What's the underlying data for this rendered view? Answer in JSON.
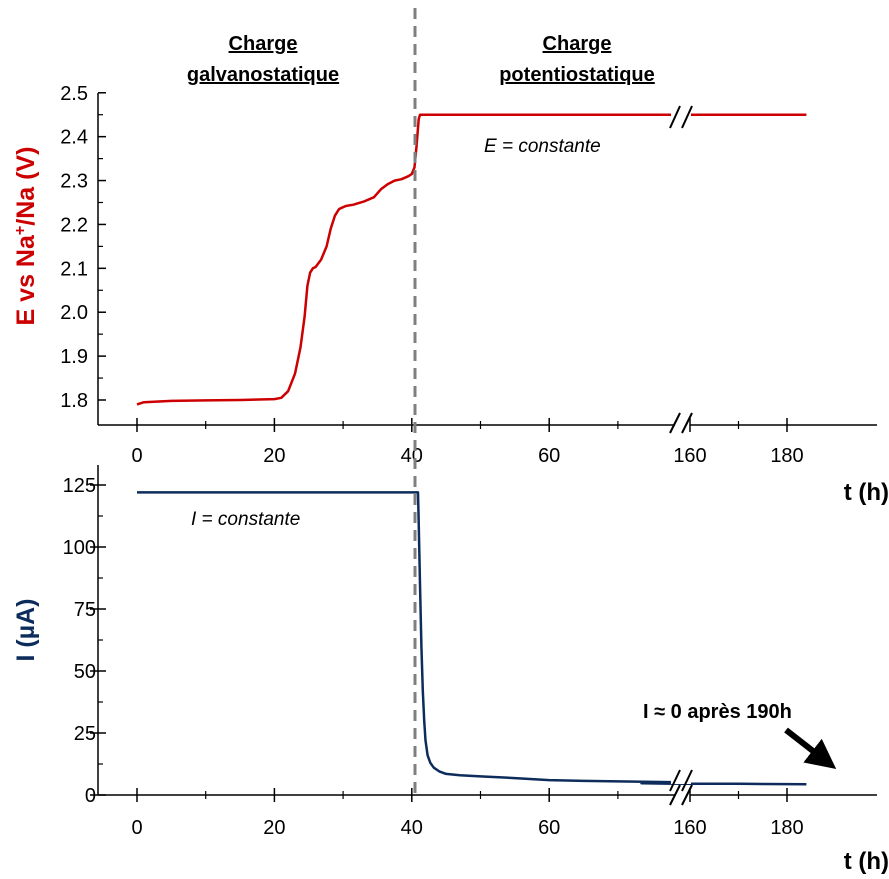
{
  "colors": {
    "potential": "#cc0000",
    "current": "#0d2c5c",
    "divider": "#7f7f7f",
    "axis": "#000000"
  },
  "chart_data": [
    {
      "type": "line",
      "id": "potential",
      "phase_labels": [
        {
          "line1": "Charge",
          "line2": "galvanostatique"
        },
        {
          "line1": "Charge",
          "line2": "potentiostatique"
        }
      ],
      "ylabel": "E vs Na⁺/Na (V)",
      "ylabel_parts": {
        "a": "E vs Na",
        "sup": "+",
        "b": "/Na (V)"
      },
      "xlabel": "t (h)",
      "annotation": "E = constante",
      "ylim": [
        1.77,
        2.5
      ],
      "y_ticks": [
        "1.8",
        "1.9",
        "2.0",
        "2.1",
        "2.2",
        "2.3",
        "2.4",
        "2.5"
      ],
      "x_ticks": [
        "0",
        "20",
        "40",
        "60",
        "160",
        "180"
      ],
      "x_break": {
        "before": 80,
        "after": 150
      },
      "series": [
        {
          "x": [
            0,
            1,
            5,
            10,
            15,
            20,
            21,
            22,
            23,
            23.8,
            24.4,
            24.8,
            25.2,
            25.6,
            26,
            26.8,
            27.6,
            28.2,
            28.8,
            29.4,
            29.8,
            30.4,
            31.5,
            33,
            34.5,
            35.5,
            36.5,
            37.5,
            38.5,
            39.5,
            40,
            40.4,
            40.7,
            41,
            41.2,
            45,
            60,
            70,
            75,
            78,
            80,
            150,
            155,
            170,
            184
          ],
          "y": [
            1.79,
            1.795,
            1.798,
            1.799,
            1.8,
            1.802,
            1.805,
            1.82,
            1.86,
            1.92,
            1.99,
            2.06,
            2.09,
            2.1,
            2.103,
            2.12,
            2.15,
            2.19,
            2.22,
            2.235,
            2.238,
            2.242,
            2.245,
            2.252,
            2.262,
            2.28,
            2.292,
            2.3,
            2.303,
            2.31,
            2.315,
            2.33,
            2.38,
            2.44,
            2.45,
            2.45,
            2.45,
            2.45,
            2.45,
            2.45,
            2.45,
            2.45,
            2.45,
            2.45,
            2.45
          ]
        }
      ]
    },
    {
      "type": "line",
      "id": "current",
      "ylabel": "I (µA)",
      "ylabel_parts": {
        "a": "I (",
        "mu": "µ",
        "b": "A)"
      },
      "xlabel": "t (h)",
      "annotation": "I = constante",
      "note": "I ≈ 0 après 190h",
      "ylim": [
        0,
        130
      ],
      "y_ticks": [
        "0",
        "25",
        "50",
        "75",
        "100",
        "125"
      ],
      "x_ticks": [
        "0",
        "20",
        "40",
        "60",
        "160",
        "180"
      ],
      "x_break": {
        "before": 80,
        "after": 150
      },
      "series": [
        {
          "x": [
            0,
            40.9,
            41.0,
            41.2,
            41.4,
            41.6,
            41.8,
            42,
            42.3,
            42.7,
            43.2,
            44,
            45,
            47,
            50,
            55,
            60,
            65,
            70,
            75,
            80,
            150,
            155,
            160,
            170,
            180,
            184
          ],
          "y": [
            122,
            122,
            110,
            85,
            60,
            42,
            30,
            22,
            16,
            13,
            11,
            9.5,
            8.5,
            8,
            7.5,
            6.8,
            6,
            5.7,
            5.5,
            5.3,
            5.1,
            4.7,
            4.6,
            4.5,
            4.5,
            4.4,
            4.3
          ]
        }
      ]
    }
  ]
}
